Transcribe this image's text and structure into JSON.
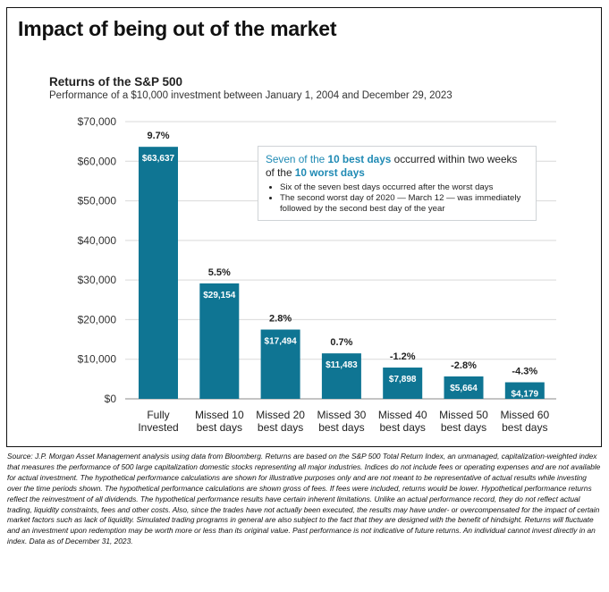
{
  "main_title": "Impact of being out of the market",
  "chart_data": {
    "type": "bar",
    "title": "Returns of the S&P 500",
    "subtitle": "Performance of a $10,000 investment between January 1, 2004 and December 29, 2023",
    "categories": [
      [
        "Fully",
        "Invested"
      ],
      [
        "Missed 10",
        "best days"
      ],
      [
        "Missed 20",
        "best days"
      ],
      [
        "Missed 30",
        "best days"
      ],
      [
        "Missed 40",
        "best days"
      ],
      [
        "Missed 50",
        "best days"
      ],
      [
        "Missed 60",
        "best days"
      ]
    ],
    "values": [
      63637,
      29154,
      17494,
      11483,
      7898,
      5664,
      4179
    ],
    "value_labels": [
      "$63,637",
      "$29,154",
      "$17,494",
      "$11,483",
      "$7,898",
      "$5,664",
      "$4,179"
    ],
    "return_labels": [
      "9.7%",
      "5.5%",
      "2.8%",
      "0.7%",
      "-1.2%",
      "-2.8%",
      "-4.3%"
    ],
    "y_ticks": [
      "$0",
      "$10,000",
      "$20,000",
      "$30,000",
      "$40,000",
      "$50,000",
      "$60,000",
      "$70,000"
    ],
    "ylim": [
      0,
      70000
    ],
    "grid": true,
    "bar_color": "#0f7593",
    "grid_color": "#d9d9d9"
  },
  "callout": {
    "head_part1": "Seven",
    "head_part2": " of the ",
    "head_part3": "10 best days",
    "head_part4": " occurred within two weeks of the ",
    "head_part5": "10 worst days",
    "bullet1": "Six of the seven best days occurred after the worst days",
    "bullet2": "The second worst day of 2020 — March 12 — was immediately followed by the second best day of the year"
  },
  "source": "Source: J.P. Morgan Asset Management analysis using data from Bloomberg. Returns are based on the S&P 500 Total Return Index, an unmanaged, capitalization-weighted index that measures the performance of 500 large capitalization domestic stocks representing all major industries. Indices do not include fees or operating expenses and are not available for actual investment. The hypothetical performance calculations are shown for illustrative purposes only and are not meant to be representative of actual results while investing over the time periods shown. The hypothetical performance calculations are shown gross of fees. If fees were included, returns would be lower. Hypothetical performance returns reflect the reinvestment of all dividends. The hypothetical performance results have certain inherent limitations. Unlike an actual performance record, they do not reflect actual trading, liquidity constraints, fees and other costs. Also, since the trades have not actually been executed, the results may have under- or overcompensated for the impact of certain market factors such as lack of liquidity. Simulated trading programs in general are also subject to the fact that they are designed with the benefit of hindsight. Returns will fluctuate and an investment upon redemption may be worth more or less than its original value. Past performance is not indicative of future returns. An individual cannot invest directly in an index. Data as of December 31, 2023."
}
